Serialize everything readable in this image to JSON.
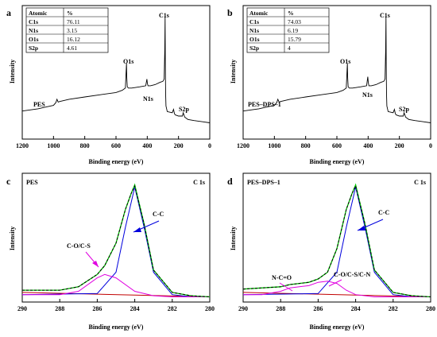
{
  "chart_data": [
    {
      "type": "line",
      "panel_letter": "a",
      "sample_label": "PES",
      "xlabel": "Binding energy (eV)",
      "ylabel": "Intensity",
      "xlim": [
        1200,
        0
      ],
      "x_reversed": true,
      "xticks": [
        "1200",
        "1000",
        "800",
        "600",
        "400",
        "200",
        "0"
      ],
      "table": {
        "headers": [
          "Atomic",
          "%"
        ],
        "rows": [
          [
            "C1s",
            "76.11"
          ],
          [
            "N1s",
            "3.15"
          ],
          [
            "O1s",
            "16.12"
          ],
          [
            "S2p",
            "4.61"
          ]
        ]
      },
      "peak_labels": [
        "C1s",
        "O1s",
        "N1s",
        "S2p"
      ],
      "series": [
        {
          "color": "#000000",
          "x": [
            1200,
            1150,
            1100,
            1050,
            1000,
            985,
            978,
            970,
            960,
            900,
            800,
            700,
            600,
            560,
            540,
            533,
            531,
            528,
            520,
            500,
            450,
            410,
            402,
            399,
            395,
            380,
            350,
            320,
            300,
            292,
            288,
            286,
            284,
            282,
            280,
            272,
            240,
            232,
            229,
            226,
            220,
            200,
            175,
            170,
            168,
            165,
            160,
            140,
            100,
            50,
            0
          ],
          "y": [
            0.155,
            0.165,
            0.175,
            0.19,
            0.205,
            0.23,
            0.26,
            0.235,
            0.24,
            0.26,
            0.28,
            0.3,
            0.32,
            0.34,
            0.36,
            0.58,
            0.45,
            0.37,
            0.36,
            0.36,
            0.37,
            0.38,
            0.44,
            0.4,
            0.38,
            0.38,
            0.39,
            0.41,
            0.42,
            0.44,
            0.7,
            1.0,
            0.55,
            0.3,
            0.2,
            0.15,
            0.14,
            0.17,
            0.15,
            0.13,
            0.12,
            0.11,
            0.11,
            0.14,
            0.13,
            0.12,
            0.1,
            0.08,
            0.07,
            0.06,
            0.05
          ]
        }
      ]
    },
    {
      "type": "line",
      "panel_letter": "b",
      "sample_label": "PES–DPS–1",
      "xlabel": "Binding energy (eV)",
      "ylabel": "Intensity",
      "xlim": [
        1200,
        0
      ],
      "x_reversed": true,
      "xticks": [
        "1200",
        "1000",
        "800",
        "600",
        "400",
        "200",
        "0"
      ],
      "table": {
        "headers": [
          "Atomic",
          "%"
        ],
        "rows": [
          [
            "C1s",
            "74.03"
          ],
          [
            "N1s",
            "6.19"
          ],
          [
            "O1s",
            "15.79"
          ],
          [
            "S2p",
            "4"
          ]
        ]
      },
      "peak_labels": [
        "C1s",
        "O1s",
        "N1s",
        "S2p"
      ],
      "series": [
        {
          "color": "#000000",
          "x": [
            1200,
            1150,
            1100,
            1050,
            1000,
            985,
            978,
            970,
            960,
            900,
            800,
            700,
            600,
            560,
            540,
            533,
            531,
            528,
            520,
            500,
            450,
            410,
            402,
            399,
            395,
            380,
            350,
            320,
            300,
            292,
            288,
            286,
            284,
            282,
            280,
            272,
            240,
            232,
            229,
            226,
            220,
            200,
            175,
            170,
            168,
            165,
            160,
            140,
            100,
            50,
            0
          ],
          "y": [
            0.155,
            0.165,
            0.175,
            0.19,
            0.205,
            0.23,
            0.26,
            0.235,
            0.24,
            0.26,
            0.28,
            0.3,
            0.32,
            0.34,
            0.36,
            0.58,
            0.45,
            0.37,
            0.36,
            0.36,
            0.37,
            0.38,
            0.46,
            0.41,
            0.38,
            0.38,
            0.39,
            0.41,
            0.42,
            0.44,
            0.7,
            1.0,
            0.55,
            0.3,
            0.2,
            0.15,
            0.14,
            0.17,
            0.15,
            0.13,
            0.12,
            0.11,
            0.11,
            0.14,
            0.13,
            0.12,
            0.1,
            0.08,
            0.07,
            0.06,
            0.05
          ]
        }
      ]
    },
    {
      "type": "line",
      "panel_letter": "c",
      "sample_label": "PES",
      "corner_label": "C 1s",
      "xlabel": "Binding energy (eV)",
      "ylabel": "Intensity",
      "xlim": [
        290,
        280
      ],
      "x_reversed": true,
      "xticks": [
        "290",
        "288",
        "286",
        "284",
        "282",
        "280"
      ],
      "component_labels": [
        "C-C",
        "C-O/C-S"
      ],
      "series": [
        {
          "color": "#c00000",
          "x": [
            290,
            280
          ],
          "y": [
            0.04,
            0.0
          ]
        },
        {
          "color": "#0000dd",
          "x": [
            290,
            286,
            285,
            284.5,
            284,
            283.5,
            283,
            282,
            281,
            280
          ],
          "y": [
            0.02,
            0.03,
            0.22,
            0.62,
            0.98,
            0.62,
            0.22,
            0.02,
            0.0,
            0.0
          ]
        },
        {
          "color": "#e000e0",
          "x": [
            290,
            288,
            287,
            286,
            285.6,
            285,
            284,
            283,
            282,
            280
          ],
          "y": [
            0.02,
            0.02,
            0.05,
            0.17,
            0.2,
            0.17,
            0.05,
            0.01,
            0.0,
            0.0
          ]
        },
        {
          "color": "#00c800",
          "x": [
            290,
            288,
            287,
            286,
            285.6,
            285,
            284.5,
            284.2,
            284,
            283.5,
            283,
            282,
            281,
            280
          ],
          "y": [
            0.06,
            0.06,
            0.09,
            0.2,
            0.28,
            0.48,
            0.78,
            0.92,
            1.0,
            0.65,
            0.24,
            0.04,
            0.01,
            0.0
          ]
        },
        {
          "color": "#000000",
          "dashed": true,
          "x": [
            290,
            288,
            287,
            286,
            285.6,
            285,
            284.5,
            284.2,
            284,
            283.5,
            283,
            282,
            281,
            280
          ],
          "y": [
            0.06,
            0.06,
            0.09,
            0.2,
            0.28,
            0.48,
            0.78,
            0.92,
            0.99,
            0.65,
            0.24,
            0.04,
            0.01,
            0.0
          ]
        }
      ]
    },
    {
      "type": "line",
      "panel_letter": "d",
      "sample_label": "PES–DPS–1",
      "corner_label": "C 1s",
      "xlabel": "Binding energy (eV)",
      "ylabel": "Intensity",
      "xlim": [
        290,
        280
      ],
      "x_reversed": true,
      "xticks": [
        "290",
        "288",
        "286",
        "284",
        "282",
        "280"
      ],
      "component_labels": [
        "C-C",
        "N-C=O",
        "C-O/C-S/C-N"
      ],
      "series": [
        {
          "color": "#c00000",
          "x": [
            290,
            280
          ],
          "y": [
            0.04,
            0.0
          ]
        },
        {
          "color": "#0000dd",
          "x": [
            290,
            286,
            285,
            284.5,
            284,
            283.5,
            283,
            282,
            281,
            280
          ],
          "y": [
            0.02,
            0.03,
            0.22,
            0.62,
            0.98,
            0.62,
            0.22,
            0.02,
            0.0,
            0.0
          ]
        },
        {
          "color": "#e000e0",
          "x": [
            290,
            289,
            288,
            287.5,
            287,
            286.5,
            286,
            285.5,
            285,
            284.5,
            284,
            283,
            282,
            280
          ],
          "y": [
            0.02,
            0.02,
            0.05,
            0.08,
            0.09,
            0.1,
            0.13,
            0.14,
            0.12,
            0.06,
            0.02,
            0.0,
            0.0,
            0.0
          ]
        },
        {
          "color": "#00c800",
          "x": [
            290,
            288,
            287.5,
            287,
            286.5,
            286,
            285.5,
            285,
            284.5,
            284.2,
            284,
            283.5,
            283,
            282,
            281,
            280
          ],
          "y": [
            0.07,
            0.09,
            0.11,
            0.12,
            0.13,
            0.16,
            0.22,
            0.43,
            0.78,
            0.92,
            1.0,
            0.65,
            0.24,
            0.04,
            0.01,
            0.0
          ]
        },
        {
          "color": "#000000",
          "dashed": true,
          "x": [
            290,
            288,
            287.5,
            287,
            286.5,
            286,
            285.5,
            285,
            284.5,
            284.2,
            284,
            283.5,
            283,
            282,
            281,
            280
          ],
          "y": [
            0.07,
            0.09,
            0.11,
            0.12,
            0.13,
            0.16,
            0.22,
            0.43,
            0.78,
            0.92,
            0.99,
            0.65,
            0.24,
            0.04,
            0.01,
            0.0
          ]
        }
      ]
    }
  ]
}
